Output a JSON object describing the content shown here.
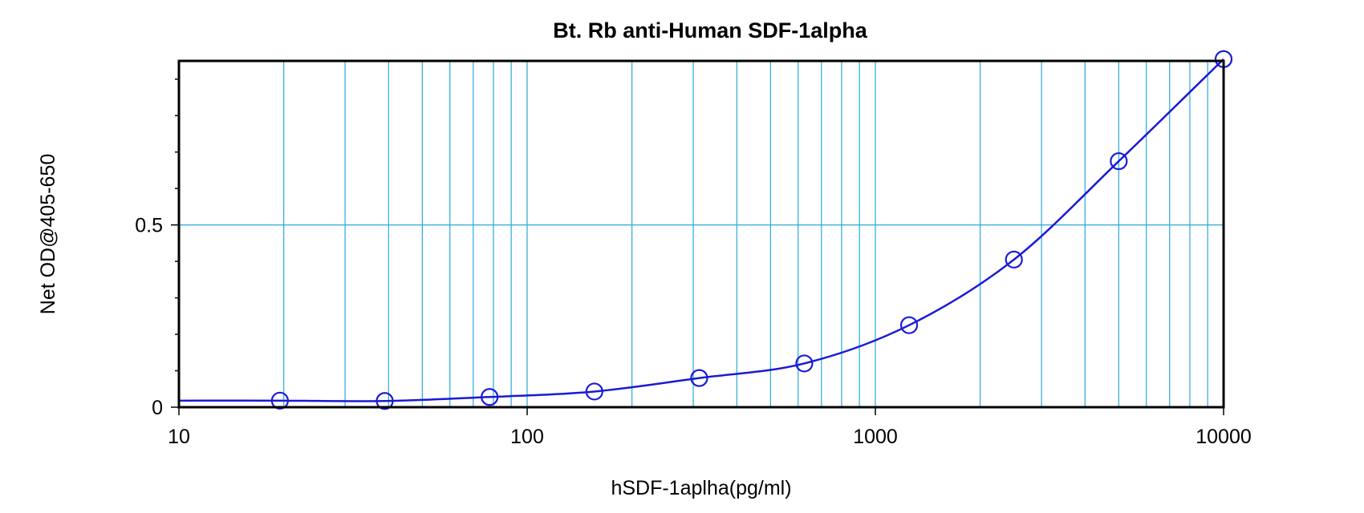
{
  "chart_data": {
    "type": "scatter",
    "title": "Bt. Rb anti-Human SDF-1alpha",
    "xlabel": "hSDF-1aplha(pg/ml)",
    "ylabel": "Net OD@405-650",
    "x_scale": "log",
    "xlim": [
      10,
      10000
    ],
    "ylim": [
      0,
      0.95
    ],
    "x_ticks": [
      10,
      100,
      1000,
      10000
    ],
    "x_tick_labels": [
      "10",
      "100",
      "1000",
      "10000"
    ],
    "y_ticks": [
      0,
      0.5
    ],
    "y_tick_labels": [
      "0",
      "0.5"
    ],
    "grid": true,
    "series": [
      {
        "marker": "circle",
        "fit_curve": true,
        "x": [
          19.5,
          39,
          78,
          156,
          312,
          625,
          1250,
          2500,
          5000,
          10000
        ],
        "y": [
          0.018,
          0.017,
          0.028,
          0.043,
          0.08,
          0.12,
          0.225,
          0.405,
          0.675,
          0.955
        ]
      }
    ],
    "colors": {
      "grid": "#29a8e0",
      "series": "#1a1ad6",
      "axes": "#000000"
    }
  }
}
